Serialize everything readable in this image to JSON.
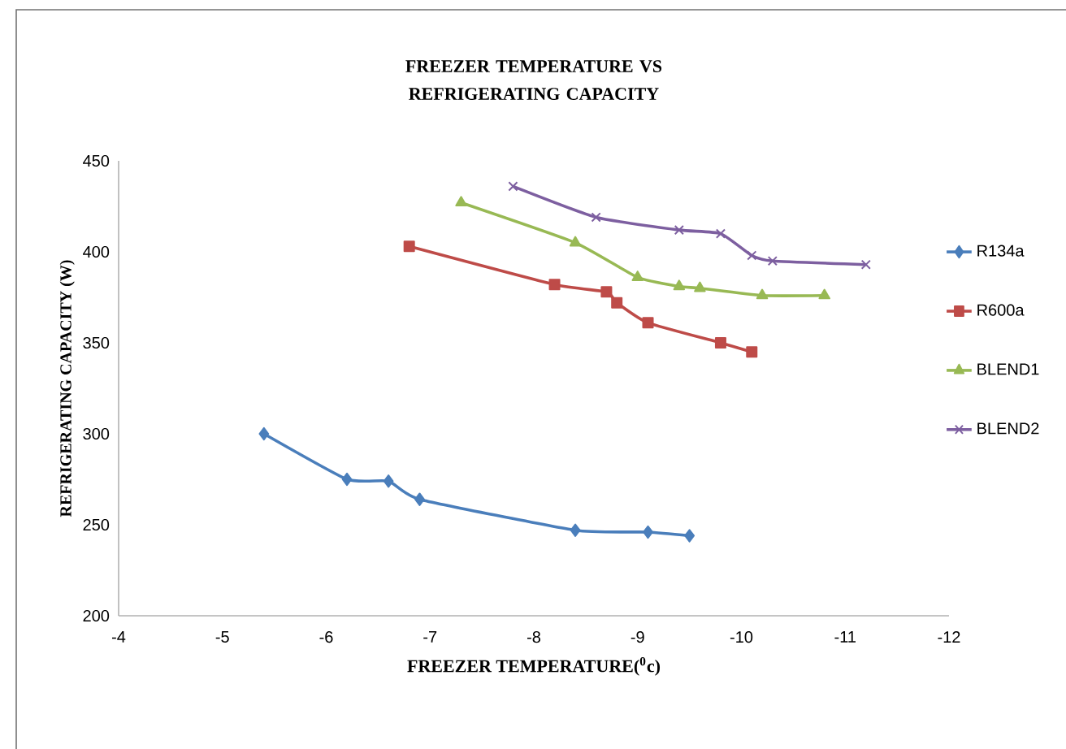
{
  "chart_data": {
    "type": "line",
    "title": "FREEZER TEMPERATURE VS REFRIGERATING CAPACITY",
    "xlabel": "FREEZER TEMPERATURE($^{0}$c)",
    "ylabel": "REFRIGERATING CAPACITY (W)",
    "xlim": [
      -4,
      -12
    ],
    "xticks": [
      -4,
      -5,
      -6,
      -7,
      -8,
      -9,
      -10,
      -11,
      -12
    ],
    "ylim": [
      200,
      450
    ],
    "yticks": [
      200,
      250,
      300,
      350,
      400,
      450
    ],
    "grid": false,
    "legend": "right",
    "series": [
      {
        "name": "R134a",
        "color": "#4a7ebb",
        "marker": "diamond",
        "x": [
          -5.4,
          -6.2,
          -6.6,
          -6.9,
          -8.4,
          -9.1,
          -9.5
        ],
        "values": [
          300,
          275,
          274,
          264,
          247,
          246,
          244
        ]
      },
      {
        "name": "R600a",
        "color": "#be4b48",
        "marker": "square",
        "x": [
          -6.8,
          -8.2,
          -8.7,
          -8.8,
          -9.1,
          -9.8,
          -10.1
        ],
        "values": [
          403,
          382,
          378,
          372,
          361,
          350,
          345
        ]
      },
      {
        "name": "BLEND1",
        "color": "#98b954",
        "marker": "triangle",
        "x": [
          -7.3,
          -8.4,
          -9.0,
          -9.4,
          -9.6,
          -10.2,
          -10.8
        ],
        "values": [
          427,
          405,
          386,
          381,
          380,
          376,
          376
        ]
      },
      {
        "name": "BLEND2",
        "color": "#7d5fa0",
        "marker": "cross",
        "x": [
          -7.8,
          -8.6,
          -9.4,
          -9.8,
          -10.1,
          -10.3,
          -11.2
        ],
        "values": [
          436,
          419,
          412,
          410,
          398,
          395,
          393
        ]
      }
    ]
  }
}
